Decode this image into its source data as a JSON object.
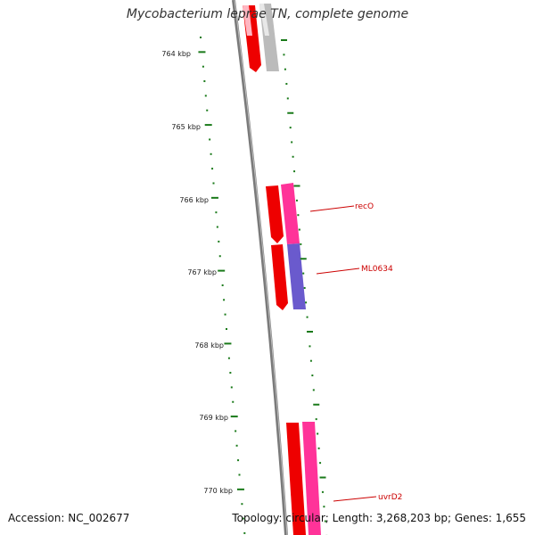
{
  "title": "Mycobacterium leprae TN, complete genome",
  "footer": {
    "accession": "Accession: NC_002677",
    "summary": "Topology: circular; Length: 3,268,203 bp; Genes: 1,655"
  },
  "map": {
    "backbone_color": "#808080",
    "tick_color": "#1a7a1a",
    "ticks": [
      {
        "label": "764 kbp"
      },
      {
        "label": "765 kbp"
      },
      {
        "label": "766 kbp"
      },
      {
        "label": "767 kbp"
      },
      {
        "label": "768 kbp"
      },
      {
        "label": "769 kbp"
      },
      {
        "label": "770 kbp"
      }
    ],
    "gene_labels": [
      "recO",
      "ML0634",
      "uvrD2"
    ],
    "feature_colors": {
      "red": "#ee0000",
      "pink": "#ff3399",
      "blue": "#6a5acd",
      "grey": "#bbbbbb",
      "light_pink": "#ffb6c1"
    }
  }
}
